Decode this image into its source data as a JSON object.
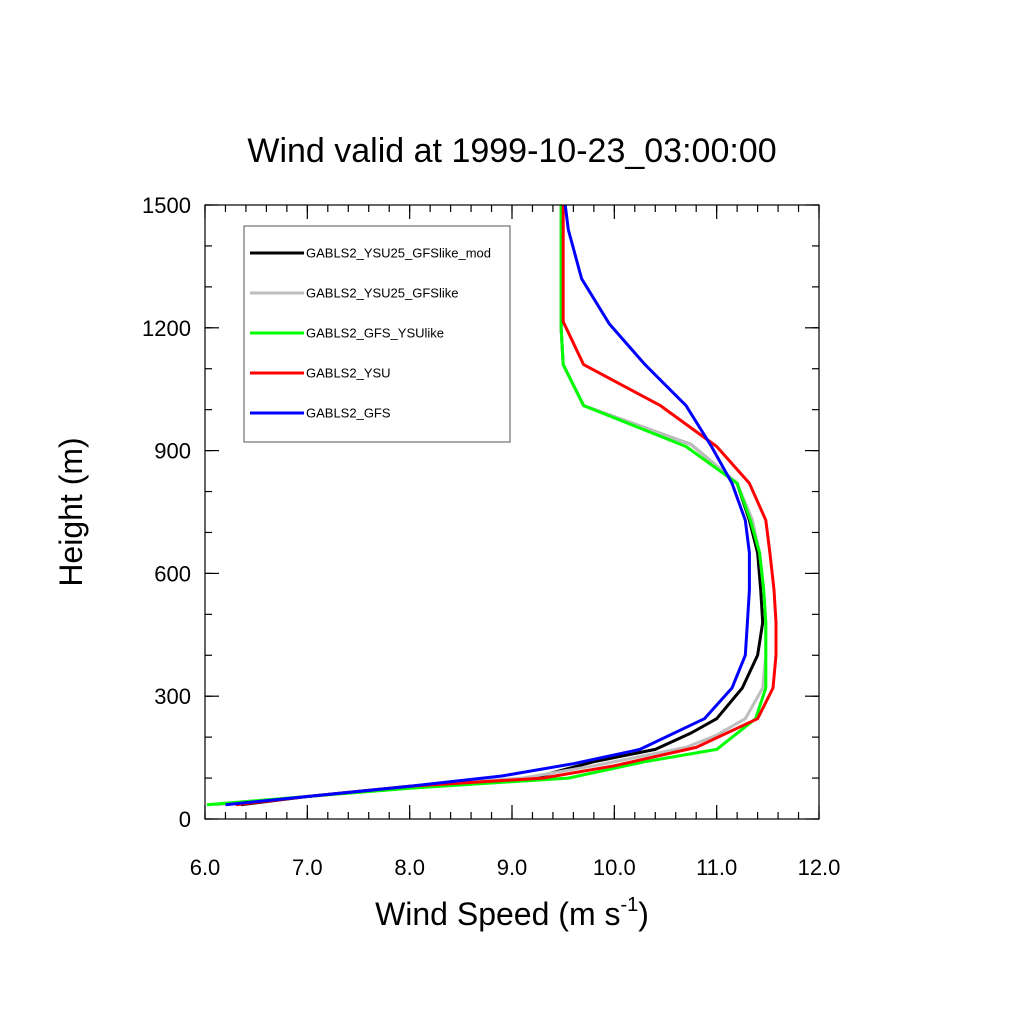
{
  "chart_data": {
    "type": "line",
    "title": "Wind valid at 1999-10-23_03:00:00",
    "xlabel_main": "Wind Speed (m s",
    "xlabel_sup": "-1",
    "xlabel_end": ")",
    "ylabel": "Height (m)",
    "xlim": [
      6.0,
      12.0
    ],
    "ylim": [
      0,
      1500
    ],
    "xticks": [
      "6.0",
      "7.0",
      "8.0",
      "9.0",
      "10.0",
      "11.0",
      "12.0"
    ],
    "yticks": [
      "0",
      "300",
      "600",
      "900",
      "1200",
      "1500"
    ],
    "grid": false,
    "legend_position": "top-left",
    "series": [
      {
        "name": "GABLS2_YSU25_GFSlike_mod",
        "color": "#000000",
        "points": [
          [
            6.35,
            35
          ],
          [
            7.0,
            55
          ],
          [
            8.0,
            80
          ],
          [
            9.2,
            100
          ],
          [
            9.8,
            140
          ],
          [
            10.4,
            170
          ],
          [
            10.75,
            210
          ],
          [
            11.0,
            245
          ],
          [
            11.25,
            320
          ],
          [
            11.4,
            400
          ],
          [
            11.45,
            480
          ],
          [
            11.43,
            560
          ],
          [
            11.4,
            650
          ],
          [
            11.32,
            730
          ],
          [
            11.2,
            820
          ],
          [
            10.75,
            915
          ],
          [
            9.7,
            1010
          ],
          [
            9.5,
            1110
          ],
          [
            9.48,
            1200
          ],
          [
            9.48,
            1300
          ],
          [
            9.48,
            1400
          ],
          [
            9.48,
            1500
          ]
        ]
      },
      {
        "name": "GABLS2_YSU25_GFSlike",
        "color": "#bebebe",
        "points": [
          [
            6.1,
            35
          ],
          [
            7.0,
            55
          ],
          [
            8.0,
            80
          ],
          [
            9.1,
            100
          ],
          [
            9.8,
            130
          ],
          [
            10.7,
            175
          ],
          [
            11.0,
            205
          ],
          [
            11.28,
            245
          ],
          [
            11.45,
            320
          ],
          [
            11.48,
            400
          ],
          [
            11.48,
            480
          ],
          [
            11.46,
            560
          ],
          [
            11.42,
            650
          ],
          [
            11.35,
            730
          ],
          [
            11.2,
            820
          ],
          [
            10.75,
            915
          ],
          [
            9.7,
            1010
          ],
          [
            9.5,
            1110
          ],
          [
            9.48,
            1200
          ],
          [
            9.48,
            1300
          ],
          [
            9.48,
            1400
          ],
          [
            9.48,
            1500
          ]
        ]
      },
      {
        "name": "GABLS2_GFS_YSUlike",
        "color": "#00ff00",
        "points": [
          [
            6.02,
            35
          ],
          [
            7.0,
            55
          ],
          [
            8.0,
            75
          ],
          [
            9.55,
            100
          ],
          [
            10.3,
            140
          ],
          [
            11.0,
            170
          ],
          [
            11.38,
            245
          ],
          [
            11.48,
            320
          ],
          [
            11.48,
            400
          ],
          [
            11.48,
            480
          ],
          [
            11.46,
            560
          ],
          [
            11.42,
            650
          ],
          [
            11.33,
            730
          ],
          [
            11.2,
            820
          ],
          [
            10.7,
            910
          ],
          [
            9.7,
            1010
          ],
          [
            9.5,
            1110
          ],
          [
            9.48,
            1200
          ],
          [
            9.48,
            1300
          ],
          [
            9.48,
            1400
          ],
          [
            9.48,
            1500
          ]
        ]
      },
      {
        "name": "GABLS2_YSU",
        "color": "#ff0000",
        "points": [
          [
            6.3,
            35
          ],
          [
            7.0,
            55
          ],
          [
            8.0,
            80
          ],
          [
            9.3,
            100
          ],
          [
            10.0,
            130
          ],
          [
            10.8,
            175
          ],
          [
            11.4,
            245
          ],
          [
            11.55,
            320
          ],
          [
            11.58,
            400
          ],
          [
            11.58,
            480
          ],
          [
            11.56,
            560
          ],
          [
            11.52,
            650
          ],
          [
            11.48,
            730
          ],
          [
            11.32,
            820
          ],
          [
            11.0,
            910
          ],
          [
            10.45,
            1010
          ],
          [
            9.7,
            1110
          ],
          [
            9.5,
            1215
          ],
          [
            9.5,
            1300
          ],
          [
            9.5,
            1400
          ],
          [
            9.5,
            1500
          ]
        ]
      },
      {
        "name": "GABLS2_GFS",
        "color": "#0000ff",
        "points": [
          [
            6.2,
            35
          ],
          [
            7.0,
            55
          ],
          [
            8.0,
            80
          ],
          [
            8.9,
            105
          ],
          [
            9.6,
            135
          ],
          [
            10.25,
            170
          ],
          [
            10.88,
            245
          ],
          [
            11.15,
            320
          ],
          [
            11.28,
            400
          ],
          [
            11.3,
            480
          ],
          [
            11.32,
            560
          ],
          [
            11.32,
            650
          ],
          [
            11.28,
            730
          ],
          [
            11.15,
            820
          ],
          [
            10.95,
            910
          ],
          [
            10.7,
            1010
          ],
          [
            10.3,
            1110
          ],
          [
            9.95,
            1210
          ],
          [
            9.68,
            1320
          ],
          [
            9.55,
            1440
          ],
          [
            9.52,
            1500
          ]
        ]
      }
    ]
  }
}
